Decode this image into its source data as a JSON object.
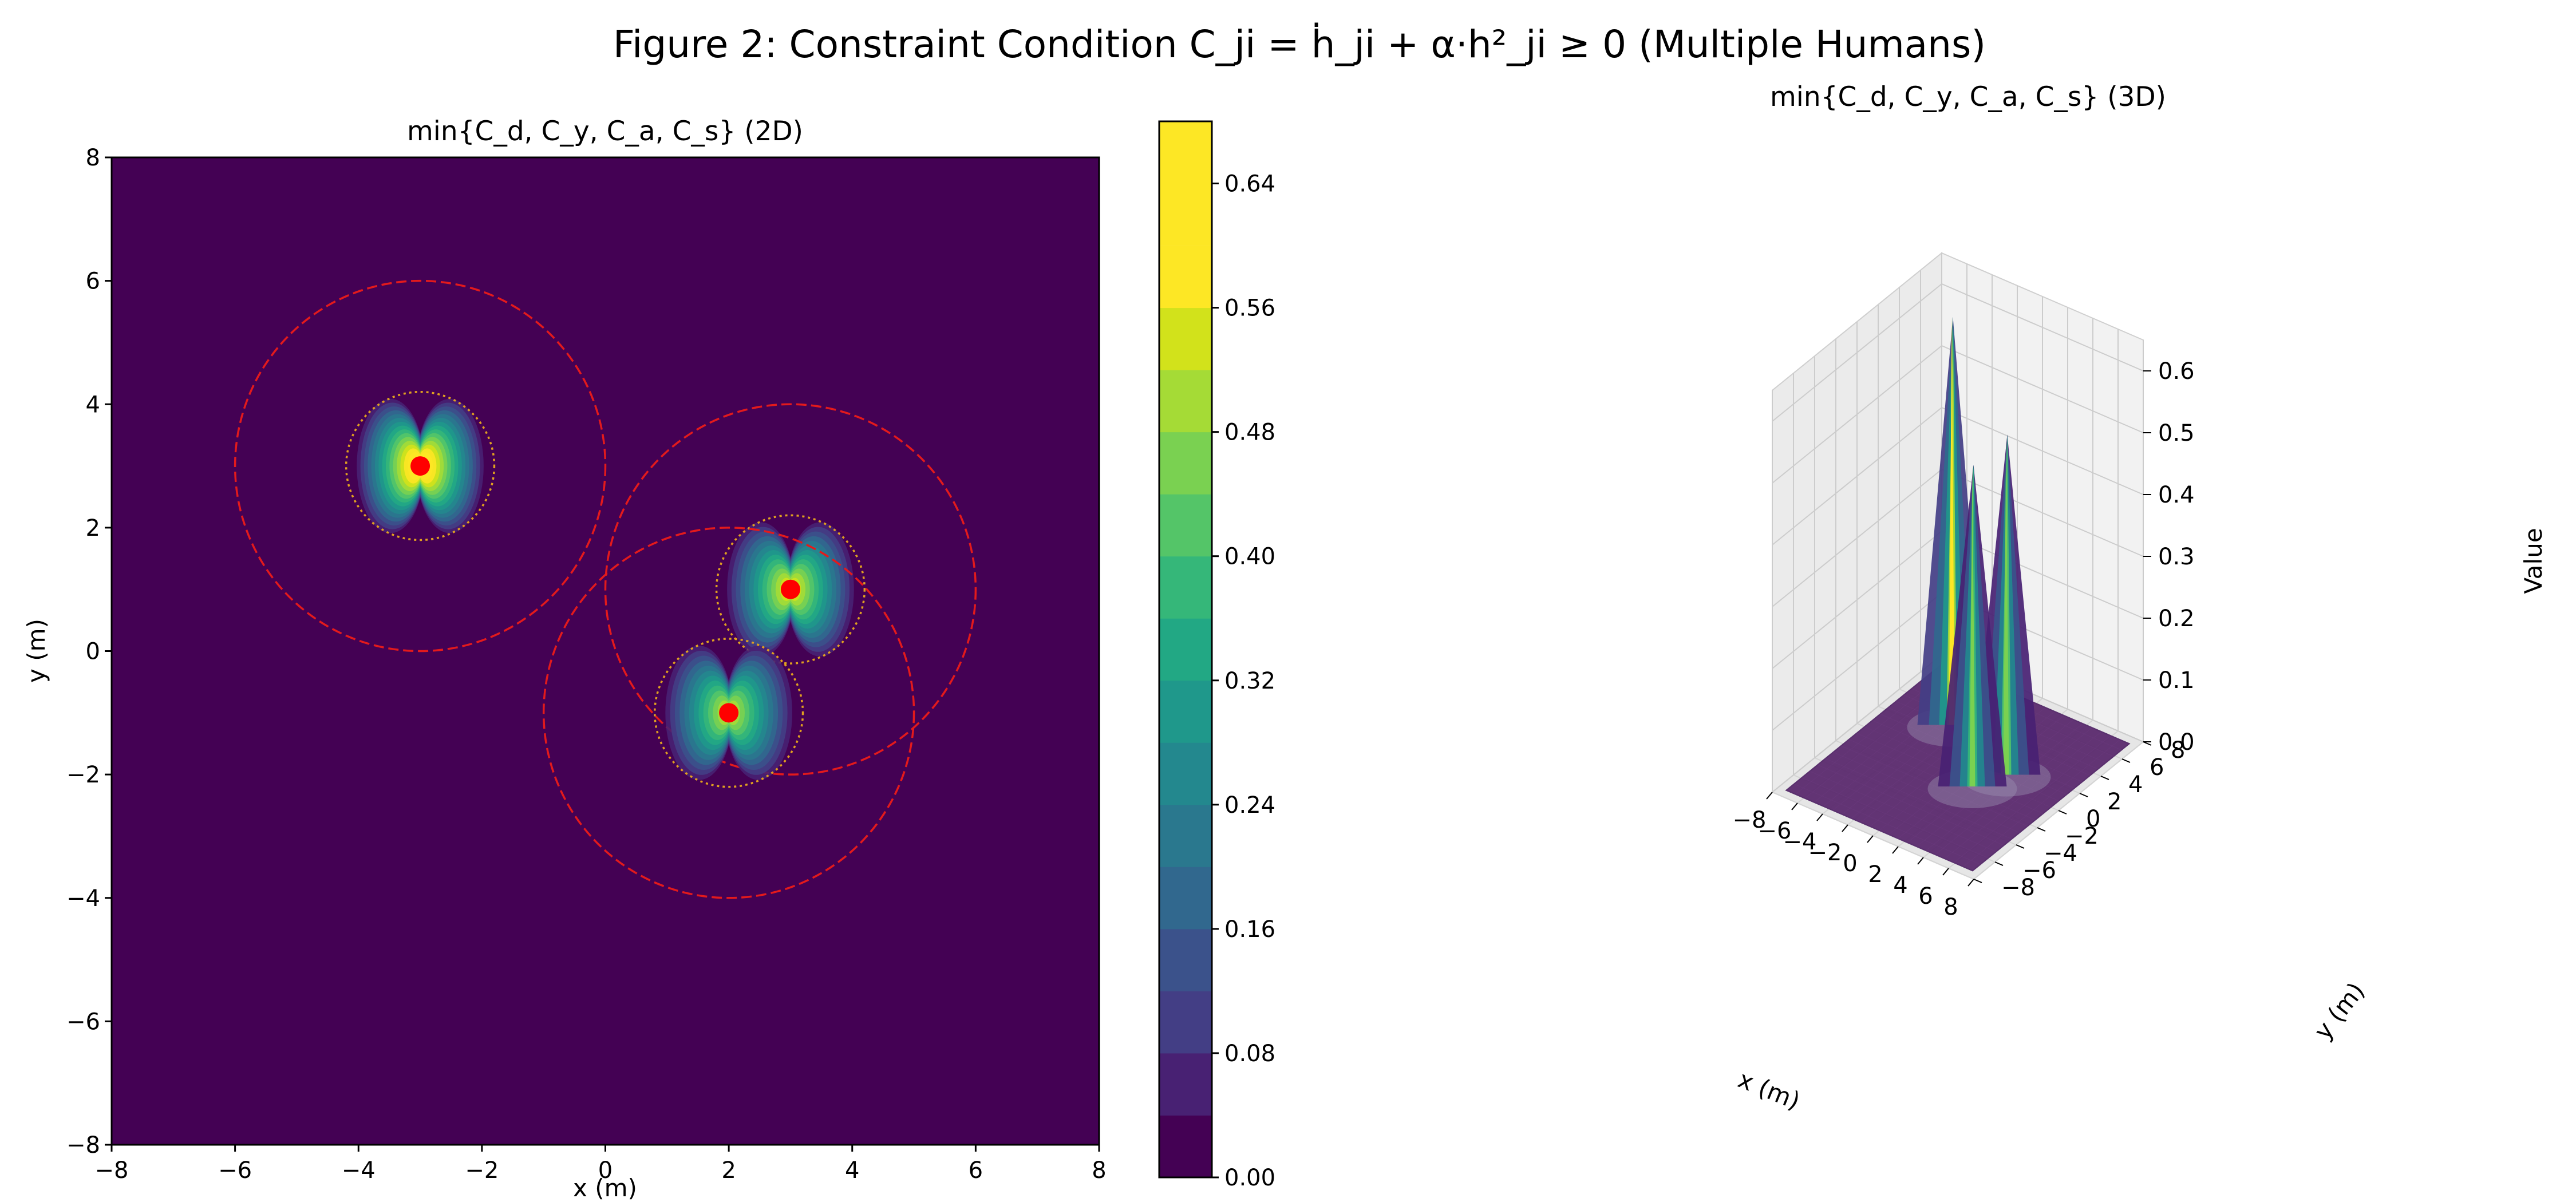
{
  "figure_title": "Figure 2: Constraint Condition C_ji = ḣ_ji + α·h²_ji ≥ 0 (Multiple Humans)",
  "colors": {
    "background_level": "#440154",
    "human_marker": "#ff0000",
    "outer_circle": "#e31a1c",
    "inner_circle": "#e0a020",
    "surface_3d": "#5b2b6e"
  },
  "chart_data": [
    {
      "type": "heatmap",
      "title": "min{C_d, C_y, C_a, C_s} (2D)",
      "xlabel": "x (m)",
      "ylabel": "y (m)",
      "xlim": [
        -8,
        8
      ],
      "ylim": [
        -8,
        8
      ],
      "xticks": [
        -8,
        -6,
        -4,
        -2,
        0,
        2,
        4,
        6,
        8
      ],
      "yticks": [
        -8,
        -6,
        -4,
        -2,
        0,
        2,
        4,
        6,
        8
      ],
      "tick_labels": [
        "−8",
        "−6",
        "−4",
        "−2",
        "0",
        "2",
        "4",
        "6",
        "8"
      ],
      "humans": [
        {
          "x": -3,
          "y": 3,
          "peak": 0.66
        },
        {
          "x": 3,
          "y": 1,
          "peak": 0.55
        },
        {
          "x": 2,
          "y": -1,
          "peak": 0.52
        }
      ],
      "outer_radius": 3,
      "inner_radius": 1.2,
      "colorbar": {
        "levels": [
          0.0,
          0.04,
          0.08,
          0.12,
          0.16,
          0.2,
          0.24,
          0.28,
          0.32,
          0.36,
          0.4,
          0.44,
          0.48,
          0.52,
          0.56,
          0.6,
          0.64,
          0.68
        ],
        "colors": [
          "#440154",
          "#482173",
          "#433e85",
          "#3b528b",
          "#31688e",
          "#2a788e",
          "#23888e",
          "#1f988b",
          "#22a884",
          "#35b779",
          "#54c568",
          "#7ad151",
          "#a5db36",
          "#d2e21b",
          "#fde725"
        ],
        "ticks": [
          "0.00",
          "0.08",
          "0.16",
          "0.24",
          "0.32",
          "0.40",
          "0.48",
          "0.56",
          "0.64"
        ]
      },
      "grid": false
    },
    {
      "type": "surface",
      "title": "min{C_d, C_y, C_a, C_s} (3D)",
      "xlabel": "x (m)",
      "ylabel": "y (m)",
      "zlabel": "Value",
      "xlim": [
        -8,
        8
      ],
      "ylim": [
        -8,
        8
      ],
      "zlim": [
        0,
        0.6
      ],
      "xticks": [
        "−8",
        "−6",
        "−4",
        "−2",
        "0",
        "2",
        "4",
        "6",
        "8"
      ],
      "yticks": [
        "−8",
        "−6",
        "−4",
        "−2",
        "0",
        "2",
        "4",
        "6",
        "8"
      ],
      "zticks": [
        "0.0",
        "0.1",
        "0.2",
        "0.3",
        "0.4",
        "0.5",
        "0.6"
      ],
      "peaks": [
        {
          "x": -3,
          "y": 3,
          "z": 0.66
        },
        {
          "x": 3,
          "y": 1,
          "z": 0.55
        },
        {
          "x": 2,
          "y": -1,
          "z": 0.52
        }
      ],
      "grid": true
    }
  ]
}
